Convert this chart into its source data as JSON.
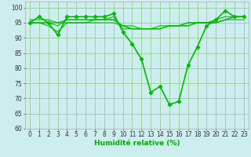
{
  "lines": [
    {
      "x": [
        0,
        1,
        2,
        3,
        4,
        5,
        6,
        7,
        8,
        9,
        10,
        11,
        12,
        13,
        14,
        15,
        16,
        17,
        18,
        19,
        20,
        21,
        22,
        23
      ],
      "y": [
        95,
        97,
        95,
        91,
        97,
        97,
        97,
        97,
        97,
        98,
        92,
        88,
        83,
        72,
        74,
        68,
        69,
        81,
        87,
        94,
        96,
        99,
        97,
        97
      ],
      "color": "#00bb00",
      "marker": "D",
      "markersize": 2.2,
      "linewidth": 1.2
    },
    {
      "x": [
        0,
        1,
        2,
        3,
        4,
        5,
        6,
        7,
        8,
        9,
        10,
        11,
        12,
        13,
        14,
        15,
        16,
        17,
        18,
        19,
        20,
        21,
        22,
        23
      ],
      "y": [
        95,
        95,
        95,
        94,
        96,
        96,
        96,
        96,
        96,
        96,
        94,
        93,
        93,
        93,
        93,
        94,
        94,
        94,
        95,
        95,
        95,
        96,
        96,
        96
      ],
      "color": "#00bb00",
      "marker": null,
      "linewidth": 0.8
    },
    {
      "x": [
        0,
        1,
        2,
        3,
        4,
        5,
        6,
        7,
        8,
        9,
        10,
        11,
        12,
        13,
        14,
        15,
        16,
        17,
        18,
        19,
        20,
        21,
        22,
        23
      ],
      "y": [
        95,
        95,
        94,
        92,
        95,
        95,
        95,
        96,
        96,
        97,
        93,
        93,
        93,
        93,
        93,
        94,
        94,
        94,
        95,
        95,
        95,
        96,
        97,
        97
      ],
      "color": "#00bb00",
      "marker": null,
      "linewidth": 0.8
    },
    {
      "x": [
        0,
        1,
        2,
        3,
        4,
        5,
        6,
        7,
        8,
        9,
        10,
        11,
        12,
        13,
        14,
        15,
        16,
        17,
        18,
        19,
        20,
        21,
        22,
        23
      ],
      "y": [
        95,
        95,
        95,
        95,
        95,
        95,
        95,
        95,
        95,
        95,
        94,
        94,
        93,
        93,
        94,
        94,
        94,
        95,
        95,
        95,
        96,
        97,
        97,
        97
      ],
      "color": "#00bb00",
      "marker": null,
      "linewidth": 0.8
    },
    {
      "x": [
        0,
        1,
        2,
        3,
        4,
        5,
        6,
        7,
        8,
        9,
        10,
        11,
        12,
        13,
        14,
        15,
        16,
        17,
        18,
        19,
        20,
        21,
        22,
        23
      ],
      "y": [
        96,
        96,
        96,
        95,
        96,
        96,
        96,
        96,
        96,
        96,
        94,
        93,
        93,
        93,
        93,
        94,
        94,
        95,
        95,
        95,
        95,
        96,
        97,
        97
      ],
      "color": "#00bb00",
      "marker": null,
      "linewidth": 0.8
    }
  ],
  "xlabel": "Humidité relative (%)",
  "xlim": [
    -0.5,
    23.5
  ],
  "ylim": [
    60,
    102
  ],
  "yticks": [
    60,
    65,
    70,
    75,
    80,
    85,
    90,
    95,
    100
  ],
  "xticks": [
    0,
    1,
    2,
    3,
    4,
    5,
    6,
    7,
    8,
    9,
    10,
    11,
    12,
    13,
    14,
    15,
    16,
    17,
    18,
    19,
    20,
    21,
    22,
    23
  ],
  "grid_color": "#99cc99",
  "bg_color": "#cceeee",
  "tick_fontsize": 5.5,
  "xlabel_fontsize": 6.5,
  "line_color": "#00aa00"
}
